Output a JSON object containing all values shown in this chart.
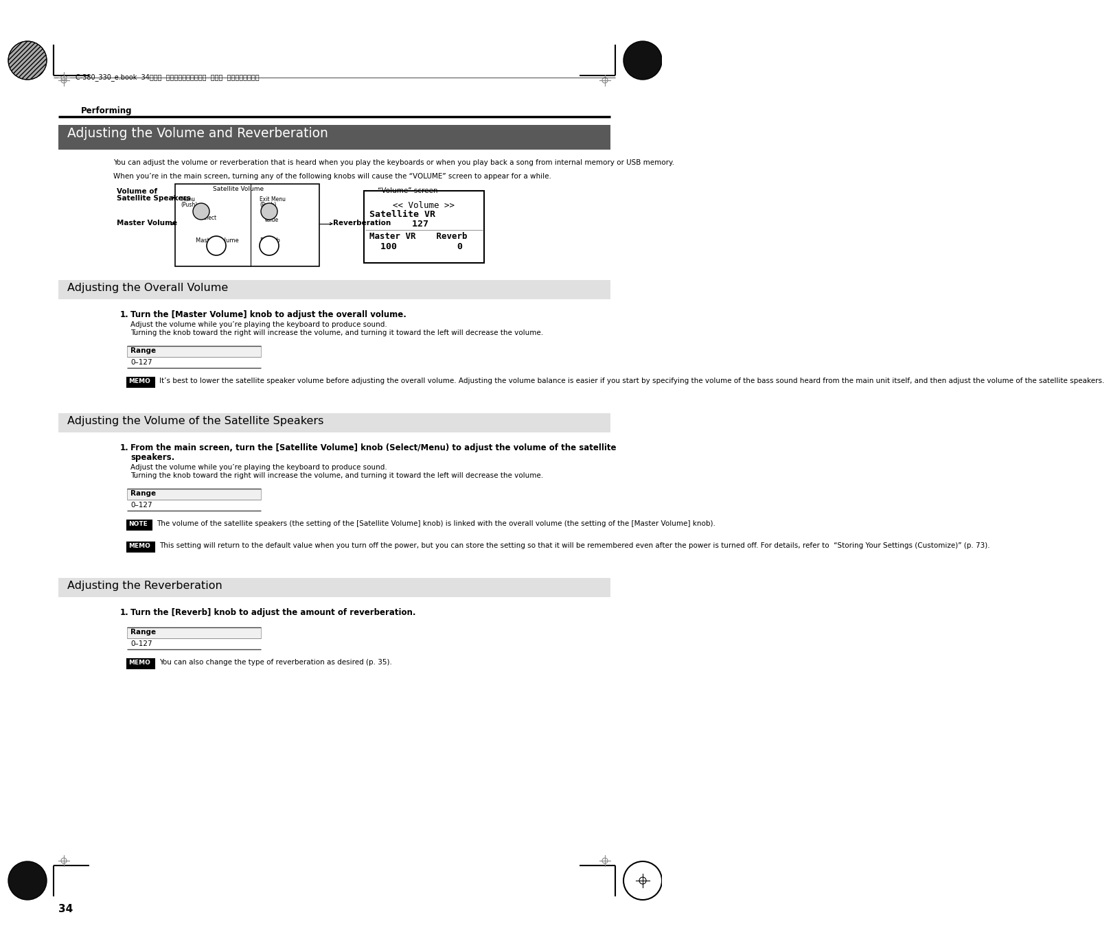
{
  "bg_color": "#ffffff",
  "header_line_text": "C-380_330_e.book  34ページ  ２０１０年４月２８日  水曜日  午後１０晎１１分",
  "performing_label": "Performing",
  "main_title": "Adjusting the Volume and Reverberation",
  "main_title_bg": "#595959",
  "main_title_color": "#ffffff",
  "intro_text1": "You can adjust the volume or reverberation that is heard when you play the keyboards or when you play back a song from internal memory or USB memory.",
  "intro_text2": "When you’re in the main screen, turning any of the following knobs will cause the “VOLUME” screen to appear for a while.",
  "section1_title": "Adjusting the Overall Volume",
  "section1_bg": "#e0e0e0",
  "section2_title": "Adjusting the Volume of the Satellite Speakers",
  "section2_bg": "#e0e0e0",
  "section3_title": "Adjusting the Reverberation",
  "section3_bg": "#e0e0e0",
  "step1_bold": "Turn the [Master Volume] knob to adjust the overall volume.",
  "step1_text1": "Adjust the volume while you’re playing the keyboard to produce sound.",
  "step1_text2": "Turning the knob toward the right will increase the volume, and turning it toward the left will decrease the volume.",
  "range_label": "Range",
  "range_value": "0–127",
  "memo_text1": "It’s best to lower the satellite speaker volume before adjusting the overall volume. Adjusting the volume balance is easier if you start by specifying the volume of the bass sound heard from the main unit itself, and then adjust the volume of the satellite speakers.",
  "step2_bold_1": "From the main screen, turn the [Satellite Volume] knob (Select/Menu) to adjust the volume of the satellite",
  "step2_bold_2": "speakers.",
  "step2_text1": "Adjust the volume while you’re playing the keyboard to produce sound.",
  "step2_text2": "Turning the knob toward the right will increase the volume, and turning it toward the left will decrease the volume.",
  "note_text": "The volume of the satellite speakers (the setting of the [Satellite Volume] knob) is linked with the overall volume (the setting of the [Master Volume] knob).",
  "memo_text2": "This setting will return to the default value when you turn off the power, but you can store the setting so that it will be remembered even after the power is turned off. For details, refer to  “Storing Your Settings (Customize)” (p. 73).",
  "step3_bold": "Turn the [Reverb] knob to adjust the amount of reverberation.",
  "memo_text3": "You can also change the type of reverberation as desired (p. 35).",
  "page_number": "34",
  "vol_label1": "Volume of",
  "vol_label2": "Satellite Speakers",
  "master_vol_label": "Master Volume",
  "reverb_label": "Reverberation",
  "vol_screen_title": "“Volume” screen",
  "screen_line1": "<< Volume >>",
  "screen_line2": "Satellite VR",
  "screen_line3": "     127",
  "screen_line4": "Master VR    Reverb",
  "screen_line5": "  100           0"
}
